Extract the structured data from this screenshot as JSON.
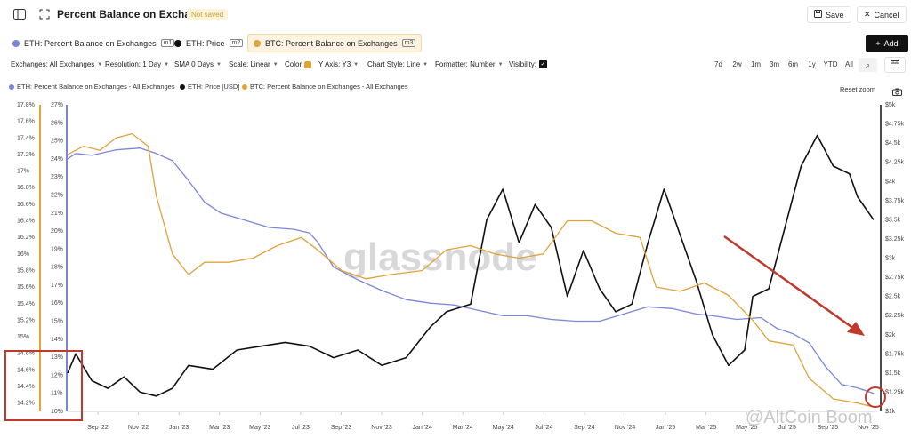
{
  "header": {
    "title": "Percent Balance on Exchanges",
    "badge": "Not saved",
    "save_label": "Save",
    "cancel_label": "Cancel"
  },
  "legend_chips": [
    {
      "label": "ETH: Percent Balance on Exchanges",
      "tag": "m1",
      "color": "#7b86d9"
    },
    {
      "label": "ETH: Price",
      "tag": "m2",
      "color": "#111111"
    },
    {
      "label": "BTC: Percent Balance on Exchanges",
      "tag": "m3",
      "color": "#e0a33a"
    }
  ],
  "add_label": "Add",
  "controls": {
    "exchanges": "Exchanges: All Exchanges",
    "resolution": "Resolution: 1 Day",
    "sma": "SMA 0 Days",
    "scale": "Scale: Linear",
    "color": "Color",
    "yaxis": "Y Axis: Y3",
    "style": "Chart Style: Line",
    "formatter": "Formatter: Number",
    "visibility": "Visibility:"
  },
  "ranges": [
    "7d",
    "2w",
    "1m",
    "3m",
    "6m",
    "1y",
    "YTD",
    "All"
  ],
  "series_legend": [
    "ETH: Percent Balance on Exchanges - All Exchanges",
    "ETH: Price [USD]",
    "BTC: Percent Balance on Exchanges - All Exchanges"
  ],
  "reset_zoom": "Reset zoom",
  "watermark": "glassnode",
  "source_watermark": "@AltCoin Boom",
  "chart_data": {
    "type": "line",
    "x_ticks": [
      "Sep '22",
      "Nov '22",
      "Jan '23",
      "Mar '23",
      "May '23",
      "Jul '23",
      "Sep '23",
      "Nov '23",
      "Jan '24",
      "Mar '24",
      "May '24",
      "Jul '24",
      "Sep '24",
      "Nov '24",
      "Jan '25",
      "Mar '25",
      "May '25",
      "Jul '25",
      "Sep '25",
      "Nov '25"
    ],
    "btc_axis": {
      "ticks": [
        "17.8%",
        "17.6%",
        "17.4%",
        "17.2%",
        "17%",
        "16.8%",
        "16.6%",
        "16.4%",
        "16.2%",
        "16%",
        "15.8%",
        "15.6%",
        "15.4%",
        "15.2%",
        "15%",
        "14.8%",
        "14.6%",
        "14.4%",
        "14.2%"
      ],
      "range": [
        14.1,
        17.8
      ]
    },
    "eth_axis": {
      "ticks": [
        "27%",
        "26%",
        "25%",
        "24%",
        "23%",
        "22%",
        "21%",
        "20%",
        "19%",
        "18%",
        "17%",
        "16%",
        "15%",
        "14%",
        "13%",
        "12%",
        "11%",
        "10%"
      ],
      "range": [
        10,
        27
      ]
    },
    "price_axis": {
      "ticks": [
        "$5k",
        "$4.75k",
        "$4.5k",
        "$4.25k",
        "$4k",
        "$3.75k",
        "$3.5k",
        "$3.25k",
        "$3k",
        "$2.75k",
        "$2.5k",
        "$2.25k",
        "$2k",
        "$1.75k",
        "$1.5k",
        "$1.25k",
        "$1k"
      ],
      "range": [
        1000,
        5000
      ]
    },
    "series": [
      {
        "name": "ETH: Percent Balance on Exchanges",
        "color": "#7b86d9",
        "axis": "eth",
        "points": [
          [
            0.0,
            24.0
          ],
          [
            0.01,
            24.3
          ],
          [
            0.03,
            24.2
          ],
          [
            0.06,
            24.5
          ],
          [
            0.09,
            24.6
          ],
          [
            0.11,
            24.3
          ],
          [
            0.13,
            23.9
          ],
          [
            0.15,
            22.8
          ],
          [
            0.17,
            21.6
          ],
          [
            0.19,
            21.0
          ],
          [
            0.22,
            20.6
          ],
          [
            0.25,
            20.2
          ],
          [
            0.28,
            20.1
          ],
          [
            0.3,
            19.9
          ],
          [
            0.31,
            19.4
          ],
          [
            0.33,
            18.0
          ],
          [
            0.36,
            17.3
          ],
          [
            0.39,
            16.7
          ],
          [
            0.42,
            16.2
          ],
          [
            0.45,
            16.0
          ],
          [
            0.48,
            15.9
          ],
          [
            0.51,
            15.6
          ],
          [
            0.54,
            15.3
          ],
          [
            0.57,
            15.3
          ],
          [
            0.6,
            15.1
          ],
          [
            0.63,
            15.0
          ],
          [
            0.66,
            15.0
          ],
          [
            0.69,
            15.4
          ],
          [
            0.72,
            15.8
          ],
          [
            0.75,
            15.7
          ],
          [
            0.78,
            15.4
          ],
          [
            0.8,
            15.3
          ],
          [
            0.83,
            15.1
          ],
          [
            0.86,
            15.2
          ],
          [
            0.88,
            14.6
          ],
          [
            0.9,
            14.3
          ],
          [
            0.92,
            13.8
          ],
          [
            0.94,
            12.5
          ],
          [
            0.96,
            11.5
          ],
          [
            0.98,
            11.3
          ],
          [
            1.0,
            11.0
          ]
        ]
      },
      {
        "name": "ETH: Price",
        "color": "#111111",
        "axis": "price",
        "points": [
          [
            0.0,
            1500
          ],
          [
            0.01,
            1750
          ],
          [
            0.03,
            1400
          ],
          [
            0.05,
            1300
          ],
          [
            0.07,
            1450
          ],
          [
            0.09,
            1250
          ],
          [
            0.11,
            1200
          ],
          [
            0.13,
            1300
          ],
          [
            0.15,
            1600
          ],
          [
            0.18,
            1550
          ],
          [
            0.21,
            1800
          ],
          [
            0.24,
            1850
          ],
          [
            0.27,
            1900
          ],
          [
            0.3,
            1850
          ],
          [
            0.33,
            1700
          ],
          [
            0.36,
            1800
          ],
          [
            0.39,
            1600
          ],
          [
            0.42,
            1700
          ],
          [
            0.45,
            2100
          ],
          [
            0.47,
            2300
          ],
          [
            0.5,
            2400
          ],
          [
            0.52,
            3500
          ],
          [
            0.54,
            3900
          ],
          [
            0.56,
            3200
          ],
          [
            0.58,
            3700
          ],
          [
            0.6,
            3400
          ],
          [
            0.62,
            2500
          ],
          [
            0.64,
            3100
          ],
          [
            0.66,
            2600
          ],
          [
            0.68,
            2300
          ],
          [
            0.7,
            2400
          ],
          [
            0.72,
            3200
          ],
          [
            0.74,
            3900
          ],
          [
            0.76,
            3300
          ],
          [
            0.78,
            2700
          ],
          [
            0.8,
            2000
          ],
          [
            0.82,
            1600
          ],
          [
            0.84,
            1800
          ],
          [
            0.85,
            2500
          ],
          [
            0.87,
            2600
          ],
          [
            0.89,
            3400
          ],
          [
            0.91,
            4200
          ],
          [
            0.93,
            4600
          ],
          [
            0.95,
            4200
          ],
          [
            0.97,
            4100
          ],
          [
            0.98,
            3800
          ],
          [
            1.0,
            3500
          ]
        ]
      },
      {
        "name": "BTC: Percent Balance on Exchanges",
        "color": "#e0a33a",
        "axis": "btc",
        "points": [
          [
            0.0,
            17.2
          ],
          [
            0.02,
            17.3
          ],
          [
            0.04,
            17.25
          ],
          [
            0.06,
            17.4
          ],
          [
            0.08,
            17.45
          ],
          [
            0.1,
            17.3
          ],
          [
            0.11,
            16.7
          ],
          [
            0.13,
            16.0
          ],
          [
            0.15,
            15.75
          ],
          [
            0.17,
            15.9
          ],
          [
            0.2,
            15.9
          ],
          [
            0.23,
            15.95
          ],
          [
            0.26,
            16.1
          ],
          [
            0.29,
            16.2
          ],
          [
            0.31,
            16.05
          ],
          [
            0.34,
            15.8
          ],
          [
            0.37,
            15.7
          ],
          [
            0.4,
            15.75
          ],
          [
            0.44,
            15.8
          ],
          [
            0.47,
            16.05
          ],
          [
            0.5,
            16.1
          ],
          [
            0.53,
            16.0
          ],
          [
            0.56,
            15.95
          ],
          [
            0.59,
            16.0
          ],
          [
            0.62,
            16.4
          ],
          [
            0.65,
            16.4
          ],
          [
            0.68,
            16.25
          ],
          [
            0.71,
            16.2
          ],
          [
            0.73,
            15.6
          ],
          [
            0.76,
            15.55
          ],
          [
            0.79,
            15.65
          ],
          [
            0.82,
            15.5
          ],
          [
            0.85,
            15.2
          ],
          [
            0.87,
            14.95
          ],
          [
            0.9,
            14.9
          ],
          [
            0.92,
            14.5
          ],
          [
            0.95,
            14.25
          ],
          [
            0.98,
            14.2
          ],
          [
            1.0,
            14.15
          ]
        ]
      }
    ],
    "annotations": [
      "downtrend-arrow",
      "latest-value-circle",
      "btc-range-box"
    ]
  }
}
